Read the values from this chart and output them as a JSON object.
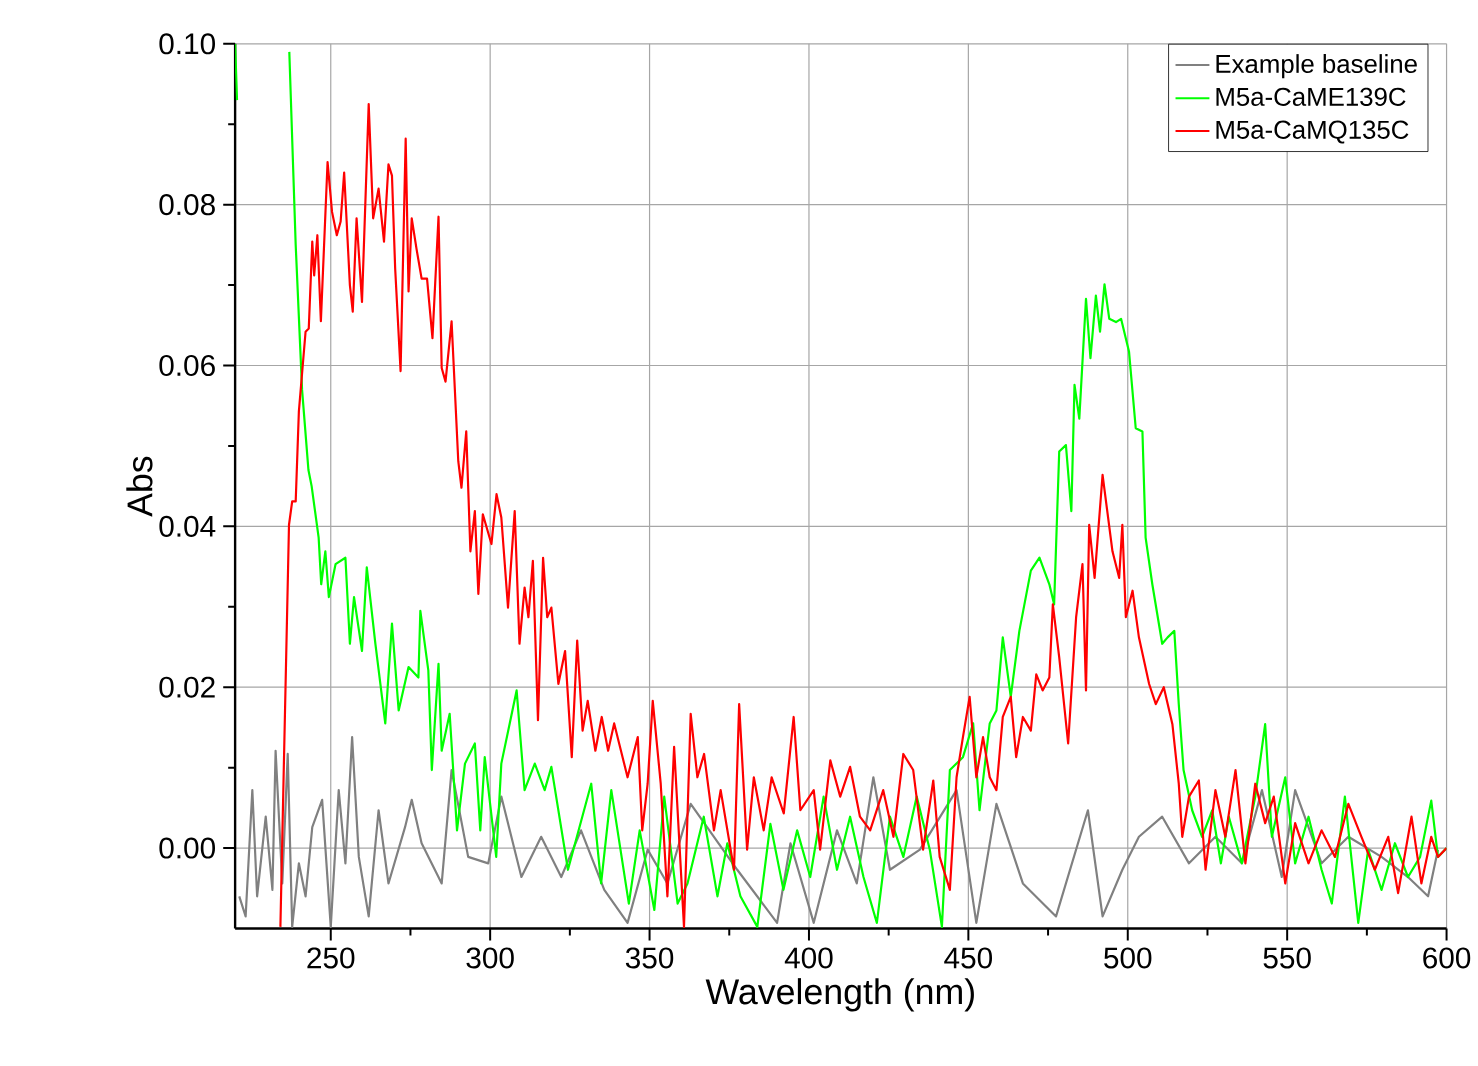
{
  "chart_data": {
    "type": "line",
    "xlabel": "Wavelength (nm)",
    "ylabel": "Abs",
    "xlim": [
      220,
      600
    ],
    "ylim": [
      -0.01,
      0.1
    ],
    "xticks": [
      250,
      300,
      350,
      400,
      450,
      500,
      550,
      600
    ],
    "yticks": [
      {
        "value": 0,
        "label": "0.00"
      },
      {
        "value": 0.02,
        "label": "0.02"
      },
      {
        "value": 0.04,
        "label": "0.04"
      },
      {
        "value": 0.06,
        "label": "0.06"
      },
      {
        "value": 0.08,
        "label": "0.08"
      },
      {
        "value": 0.1,
        "label": "0.10"
      }
    ],
    "grid": true,
    "legend": "top right",
    "marker": "none",
    "line_style": "solid",
    "series": [
      {
        "name": "Example baseline",
        "color": "#808080",
        "x": [
          221.3,
          223.3,
          225.4,
          226.9,
          229.6,
          231.7,
          232.7,
          234.8,
          236.5,
          237.9,
          240,
          242.1,
          244.2,
          247.3,
          250,
          252.5,
          254.6,
          256.7,
          258.8,
          261.9,
          265,
          268.1,
          273.3,
          275.4,
          278.5,
          284.8,
          287.9,
          293.1,
          299.4,
          303.5,
          309.8,
          316,
          322.3,
          328.5,
          335.8,
          343.1,
          349.4,
          355.6,
          362.9,
          377.5,
          390,
          394.2,
          401.5,
          408.8,
          415,
          420.2,
          425.4,
          434.8,
          446.3,
          452.5,
          458.8,
          467.1,
          477.5,
          487.5,
          492.1,
          498.3,
          503.5,
          510.8,
          519.2,
          527.5,
          535.8,
          542.1,
          548.3,
          552.5,
          560.8,
          569.2,
          579.6,
          587.9,
          594.2,
          597.3
        ],
        "values": [
          -0.006,
          -0.0085,
          0.0072,
          -0.006,
          0.0039,
          -0.0052,
          0.0121,
          -0.0044,
          0.0117,
          -0.0098,
          -0.0019,
          -0.006,
          0.0026,
          0.006,
          -0.0098,
          0.0072,
          -0.0019,
          0.0138,
          -0.0011,
          -0.0085,
          0.0047,
          -0.0044,
          0.0026,
          0.006,
          0.0006,
          -0.0044,
          0.0097,
          -0.0011,
          -0.0019,
          0.0064,
          -0.0036,
          0.0014,
          -0.0036,
          0.0022,
          -0.0052,
          -0.0093,
          -0.0002,
          -0.0044,
          0.0055,
          -0.0027,
          -0.0093,
          0.0006,
          -0.0093,
          0.0022,
          -0.0044,
          0.0088,
          -0.0027,
          -0.0002,
          0.0072,
          -0.0093,
          0.0055,
          -0.0044,
          -0.0085,
          0.0047,
          -0.0085,
          -0.0027,
          0.0014,
          0.0039,
          -0.0019,
          0.0014,
          -0.0019,
          0.0072,
          -0.0036,
          0.0072,
          -0.0019,
          0.0014,
          -0.0011,
          -0.0036,
          -0.006,
          -0.0002
        ]
      },
      {
        "name": "M5a-CaME139C",
        "color": "#00ff00",
        "x": [
          220,
          220.6,
          221,
          237,
          239,
          241,
          243,
          244,
          246.2,
          247,
          248.3,
          249.4,
          251.5,
          254.6,
          256,
          257.3,
          259.8,
          261.3,
          264,
          267.1,
          269.2,
          271.3,
          274.4,
          277.5,
          278.1,
          280.6,
          281.7,
          283.8,
          284.8,
          287.3,
          289.6,
          292.1,
          295.2,
          296.9,
          298.3,
          301.9,
          303.5,
          308.3,
          310.8,
          314,
          317.1,
          319.2,
          324.4,
          331.7,
          334.8,
          338,
          343.5,
          346.9,
          351.5,
          354.6,
          358.8,
          361.9,
          367,
          371.3,
          374.4,
          378.5,
          383.8,
          387.9,
          392,
          396.3,
          400.4,
          404.6,
          408.8,
          412.9,
          417.1,
          421.3,
          425.4,
          429.6,
          433.8,
          437.9,
          441.7,
          444.2,
          448.3,
          451.5,
          453.5,
          456.7,
          458.8,
          460.8,
          463.3,
          466,
          469.6,
          472.3,
          475.4,
          476.9,
          478.5,
          480.6,
          482.3,
          483.3,
          484.8,
          486.9,
          488.3,
          490,
          491.3,
          492.7,
          494.2,
          496.3,
          497.9,
          500.4,
          502.5,
          504.6,
          505.6,
          507.7,
          510.8,
          512.5,
          514.6,
          516,
          517.5,
          520.2,
          523.3,
          526.5,
          529.2,
          531.7,
          535.8,
          540,
          543.1,
          545.2,
          549.4,
          552.5,
          556.7,
          560.8,
          564,
          568.1,
          572.3,
          575.4,
          579.6,
          583.8,
          587.9,
          591.7,
          595.2,
          597.3,
          600
        ],
        "values": [
          0.1,
          0.093,
          null,
          0.099,
          0.075,
          0.057,
          0.047,
          0.045,
          0.0386,
          0.0328,
          0.0369,
          0.0312,
          0.0353,
          0.0361,
          0.0254,
          0.0312,
          0.0245,
          0.0349,
          0.0254,
          0.0155,
          0.0279,
          0.0171,
          0.0225,
          0.0212,
          0.0295,
          0.0221,
          0.0097,
          0.0229,
          0.0121,
          0.0167,
          0.0022,
          0.0105,
          0.013,
          0.0022,
          0.0113,
          -0.0011,
          0.0105,
          0.0196,
          0.0072,
          0.0105,
          0.0072,
          0.0101,
          -0.0027,
          0.008,
          -0.0044,
          0.0072,
          -0.0069,
          0.0022,
          -0.0077,
          0.0064,
          -0.0069,
          -0.0044,
          0.0039,
          -0.006,
          0.0006,
          -0.006,
          -0.0098,
          0.003,
          -0.0052,
          0.0022,
          -0.0036,
          0.0064,
          -0.0027,
          0.0039,
          -0.0036,
          -0.0093,
          0.0039,
          -0.0011,
          0.0064,
          -0.0002,
          -0.0098,
          0.0097,
          0.0113,
          0.0155,
          0.0047,
          0.0155,
          0.0171,
          0.0262,
          0.0188,
          0.027,
          0.0345,
          0.0361,
          0.0328,
          0.0303,
          0.0493,
          0.0501,
          0.0419,
          0.0576,
          0.0534,
          0.0683,
          0.0609,
          0.0687,
          0.0642,
          0.0701,
          0.0658,
          0.0654,
          0.0658,
          0.0617,
          0.0522,
          0.0518,
          0.0386,
          0.0328,
          0.0254,
          0.0262,
          0.027,
          0.0179,
          0.0097,
          0.0047,
          0.0014,
          0.0047,
          -0.0019,
          0.0039,
          -0.0019,
          0.0064,
          0.0154,
          0.0014,
          0.0088,
          -0.0019,
          0.0039,
          -0.0027,
          -0.0069,
          0.0064,
          -0.0093,
          -0.0002,
          -0.0052,
          0.0006,
          -0.0036,
          -0.0011,
          0.0059,
          -0.0011,
          0
        ]
      },
      {
        "name": "M5a-CaMQ135C",
        "color": "#ff0000",
        "x": [
          234.2,
          236.9,
          237.9,
          239,
          240,
          242.1,
          243.1,
          244.2,
          244.8,
          245.8,
          246.9,
          249,
          250.4,
          251.9,
          253.1,
          254.2,
          256,
          256.9,
          258.1,
          259.8,
          261.9,
          263.3,
          265,
          266.7,
          268.1,
          269.2,
          270.2,
          271.9,
          273.5,
          274.4,
          275.4,
          276.9,
          278.5,
          280.2,
          281.9,
          283.8,
          284.8,
          286,
          287.9,
          290,
          291,
          292.5,
          293.8,
          295.2,
          296.3,
          297.7,
          300.4,
          302,
          303.5,
          305.6,
          307.7,
          309.2,
          310.8,
          312,
          313.4,
          315,
          316.6,
          317.9,
          319.2,
          321.4,
          323.5,
          325.6,
          327.3,
          329,
          330.6,
          333,
          335,
          337,
          338.9,
          343.1,
          346.3,
          347.7,
          349.4,
          351,
          353.5,
          355.6,
          357.7,
          360.8,
          362.9,
          365,
          367.1,
          370.2,
          372.3,
          376.5,
          378.1,
          380.6,
          382.7,
          385.8,
          388.3,
          392.1,
          395.2,
          397.3,
          401.5,
          403.5,
          406.7,
          409.8,
          412.9,
          416,
          419.2,
          423.3,
          426.5,
          429.6,
          432.7,
          435.8,
          439,
          441,
          444.2,
          446.3,
          448.3,
          450.4,
          452.5,
          454.6,
          456.7,
          458.8,
          460.8,
          463.3,
          465,
          467.1,
          469.6,
          471.3,
          473.3,
          475.4,
          476.5,
          478.5,
          481.3,
          483.8,
          485.8,
          486.9,
          487.9,
          489.6,
          492.1,
          495.2,
          497.3,
          498.3,
          499.4,
          501.5,
          503.5,
          506.7,
          508.8,
          511.3,
          514,
          516,
          517.1,
          519.2,
          522.3,
          524.4,
          527.5,
          530.6,
          533.8,
          536.9,
          540,
          543.1,
          545.8,
          549.4,
          552.5,
          556.7,
          560.8,
          565,
          569.2,
          573.3,
          577.5,
          581.7,
          584.8,
          589,
          592.1,
          595.2,
          597.3,
          600
        ],
        "values": [
          -0.0098,
          0.0402,
          0.0431,
          0.0431,
          0.0543,
          0.0642,
          0.0646,
          0.0754,
          0.0712,
          0.0762,
          0.0655,
          0.0853,
          0.0791,
          0.0762,
          0.0779,
          0.084,
          0.07,
          0.0667,
          0.0783,
          0.0679,
          0.0925,
          0.0783,
          0.082,
          0.0754,
          0.085,
          0.0836,
          0.0721,
          0.0593,
          0.0882,
          0.0692,
          0.0783,
          0.0745,
          0.0708,
          0.0708,
          0.0634,
          0.0785,
          0.0597,
          0.058,
          0.0655,
          0.0481,
          0.0448,
          0.0518,
          0.0369,
          0.0419,
          0.0316,
          0.0415,
          0.0378,
          0.044,
          0.0411,
          0.0299,
          0.0419,
          0.0254,
          0.0324,
          0.0287,
          0.0357,
          0.0159,
          0.0361,
          0.0287,
          0.0299,
          0.0204,
          0.0245,
          0.0113,
          0.0258,
          0.0146,
          0.0183,
          0.0121,
          0.0163,
          0.0121,
          0.0155,
          0.0088,
          0.0138,
          0.0022,
          0.008,
          0.0183,
          0.008,
          -0.006,
          0.0126,
          -0.0098,
          0.0167,
          0.0088,
          0.0117,
          0.0022,
          0.0072,
          -0.0027,
          0.0179,
          -0.0002,
          0.0088,
          0.0022,
          0.0088,
          0.0043,
          0.0163,
          0.0047,
          0.0072,
          -0.0002,
          0.0109,
          0.0064,
          0.0101,
          0.0039,
          0.0022,
          0.0072,
          0.0014,
          0.0117,
          0.0097,
          -0.0002,
          0.0084,
          -0.0011,
          -0.0052,
          0.0088,
          0.0138,
          0.0188,
          0.0088,
          0.0138,
          0.0088,
          0.0072,
          0.0163,
          0.0188,
          0.0113,
          0.0163,
          0.0146,
          0.0216,
          0.0196,
          0.0212,
          0.0303,
          0.0237,
          0.013,
          0.0287,
          0.0353,
          0.0196,
          0.0402,
          0.0336,
          0.0464,
          0.0369,
          0.0336,
          0.0402,
          0.0287,
          0.032,
          0.0262,
          0.0204,
          0.0179,
          0.02,
          0.0154,
          0.008,
          0.0014,
          0.0064,
          0.0084,
          -0.0027,
          0.0072,
          0.0014,
          0.0097,
          -0.0019,
          0.008,
          0.0031,
          0.0064,
          -0.0044,
          0.0031,
          -0.0019,
          0.0022,
          -0.0011,
          0.0055,
          0.0014,
          -0.0027,
          0.0014,
          -0.0056,
          0.0039,
          -0.0044,
          0.0014,
          -0.0011,
          0
        ]
      }
    ]
  }
}
